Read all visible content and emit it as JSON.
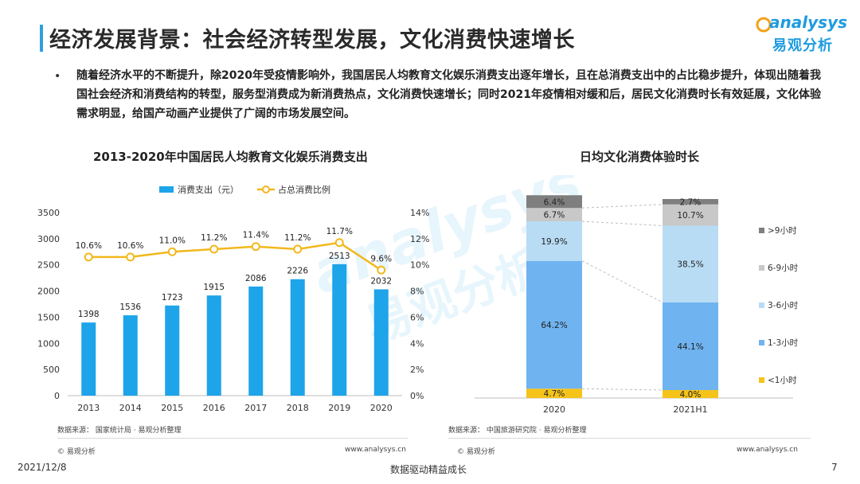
{
  "header": {
    "title": "经济发展背景：社会经济转型发展，文化消费快速增长",
    "logo_word": "analysys",
    "logo_sub": "易观分析"
  },
  "intro": {
    "bullet": "•",
    "text": "随着经济水平的不断提升，除2020年受疫情影响外，我国居民人均教育文化娱乐消费支出逐年增长，且在总消费支出中的占比稳步提升，体现出随着我国社会经济和消费结构的转型，服务型消费成为新消费热点，文化消费快速增长；同时2021年疫情相对缓和后，居民文化消费时长有效延展，文化体验需求明显，给国产动画产业提供了广阔的市场发展空间。"
  },
  "left_chart": {
    "source": "数据来源：  国家统计局 · 易观分析整理",
    "copyright": "© 易观分析",
    "site": "www.analysys.cn"
  },
  "right_chart": {
    "source": "数据来源：  中国旅游研究院 · 易观分析整理",
    "copyright": "© 易观分析",
    "site": "www.analysys.cn"
  },
  "footer": {
    "date": "2021/12/8",
    "slogan": "数据驱动精益成长",
    "page": "7"
  },
  "colors": {
    "bar": "#1ea4e9",
    "line": "#f2b81c",
    "accent": "#2f9ee0",
    "stack": [
      "#f5c31a",
      "#6fb3f0",
      "#b9dcf5",
      "#c8c8c8",
      "#7f7f7f"
    ]
  },
  "chart_data": [
    {
      "type": "bar",
      "title": "2013-2020年中国居民人均教育文化娱乐消费支出",
      "categories": [
        "2013",
        "2014",
        "2015",
        "2016",
        "2017",
        "2018",
        "2019",
        "2020"
      ],
      "series": [
        {
          "name": "消费支出（元）",
          "type": "bar",
          "axis": "left",
          "values": [
            1398,
            1536,
            1723,
            1915,
            2086,
            2226,
            2513,
            2032
          ],
          "labels": [
            "1398",
            "1536",
            "1723",
            "1915",
            "2086",
            "2226",
            "2513",
            "2032"
          ]
        },
        {
          "name": "占总消费比例",
          "type": "line",
          "axis": "right",
          "values": [
            10.6,
            10.6,
            11.0,
            11.2,
            11.4,
            11.2,
            11.7,
            9.6
          ],
          "labels": [
            "10.6%",
            "10.6%",
            "11.0%",
            "11.2%",
            "11.4%",
            "11.2%",
            "11.7%",
            "9.6%"
          ]
        }
      ],
      "ylim": [
        0,
        3500
      ],
      "y2lim": [
        0,
        14
      ],
      "yticks": [
        "0",
        "500",
        "1000",
        "1500",
        "2000",
        "2500",
        "3000",
        "3500"
      ],
      "y2ticks": [
        "0%",
        "2%",
        "4%",
        "6%",
        "8%",
        "10%",
        "12%",
        "14%"
      ],
      "legend": "top",
      "grid": false
    },
    {
      "type": "bar",
      "stacked": true,
      "title": "日均文化消费体验时长",
      "categories": [
        "2020",
        "2021H1"
      ],
      "series": [
        {
          "name": "<1小时",
          "values": [
            4.7,
            4.0
          ],
          "labels": [
            "4.7%",
            "4.0%"
          ]
        },
        {
          "name": "1-3小时",
          "values": [
            64.2,
            44.1
          ],
          "labels": [
            "64.2%",
            "44.1%"
          ]
        },
        {
          "name": "3-6小时",
          "values": [
            19.9,
            38.5
          ],
          "labels": [
            "19.9%",
            "38.5%"
          ]
        },
        {
          "name": "6-9小时",
          "values": [
            6.7,
            10.7
          ],
          "labels": [
            "6.7%",
            "10.7%"
          ]
        },
        {
          "name": ">9小时",
          "values": [
            6.4,
            2.7
          ],
          "labels": [
            "6.4%",
            "2.7%"
          ]
        }
      ],
      "ylim": [
        0,
        100
      ],
      "legend": "right",
      "grid": false
    }
  ]
}
